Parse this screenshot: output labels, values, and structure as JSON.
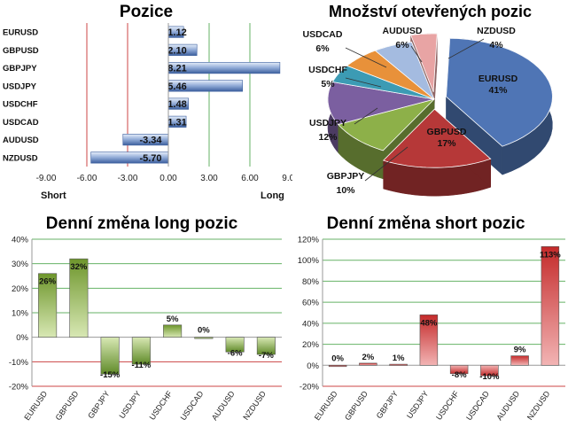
{
  "colors": {
    "positive_green": "#7ea53c",
    "negative_green": "#5f8a28",
    "short_red": "#c42a2a",
    "position_blue": "#4f75b5",
    "grid_green": "#66b266",
    "grid_red": "#cc4444"
  },
  "chart_data": [
    {
      "type": "bar",
      "orientation": "horizontal",
      "title": "Pozice",
      "categories": [
        "EURUSD",
        "GBPUSD",
        "GBPJPY",
        "USDJPY",
        "USDCHF",
        "USDCAD",
        "AUDUSD",
        "NZDUSD"
      ],
      "values": [
        1.12,
        2.1,
        8.21,
        5.46,
        1.48,
        1.31,
        -3.34,
        -5.7
      ],
      "data_labels": [
        "1.12",
        "2.10",
        "8.21",
        "5.46",
        "1.48",
        "1.31",
        "-3.34",
        "-5.70"
      ],
      "xlim": [
        -9,
        9
      ],
      "ticks": [
        -9,
        -6,
        -3,
        0,
        3,
        6,
        9
      ],
      "tick_labels": [
        "-9.00",
        "-6.00",
        "-3.00",
        "0.00",
        "3.00",
        "6.00",
        "9.00"
      ],
      "left_label": "Short",
      "right_label": "Long"
    },
    {
      "type": "pie",
      "title": "Množství otevřených pozic",
      "labels": [
        "EURUSD",
        "GBPUSD",
        "GBPJPY",
        "USDJPY",
        "USDCHF",
        "USDCAD",
        "AUDUSD",
        "NZDUSD"
      ],
      "values": [
        41,
        17,
        10,
        12,
        5,
        6,
        6,
        4
      ],
      "data_labels": [
        "41%",
        "17%",
        "10%",
        "12%",
        "5%",
        "6%",
        "6%",
        "4%"
      ],
      "colors": [
        "#4f75b5",
        "#b63838",
        "#8db049",
        "#7b5fa0",
        "#3c9bb4",
        "#e8913a",
        "#a4bbe0",
        "#e8a4a4"
      ]
    },
    {
      "type": "bar",
      "title": "Denní změna long pozic",
      "categories": [
        "EURUSD",
        "GBPUSD",
        "GBPJPY",
        "USDJPY",
        "USDCHF",
        "USDCAD",
        "AUDUSD",
        "NZDUSD"
      ],
      "values": [
        26,
        32,
        -15,
        -11,
        5,
        0,
        -6,
        -7
      ],
      "data_labels": [
        "26%",
        "32%",
        "-15%",
        "-11%",
        "5%",
        "0%",
        "-6%",
        "-7%"
      ],
      "ylim": [
        -20,
        40
      ],
      "ticks": [
        -20,
        -10,
        0,
        10,
        20,
        30,
        40
      ],
      "tick_labels": [
        "-20%",
        "-10%",
        "0%",
        "10%",
        "20%",
        "30%",
        "40%"
      ]
    },
    {
      "type": "bar",
      "title": "Denní změna short pozic",
      "categories": [
        "EURUSD",
        "GBPUSD",
        "GBPJPY",
        "USDJPY",
        "USDCHF",
        "USDCAD",
        "AUDUSD",
        "NZDUSD"
      ],
      "values": [
        0,
        2,
        1,
        48,
        -8,
        -10,
        9,
        113
      ],
      "data_labels": [
        "0%",
        "2%",
        "1%",
        "48%",
        "-8%",
        "-10%",
        "9%",
        "113%"
      ],
      "ylim": [
        -20,
        120
      ],
      "ticks": [
        -20,
        0,
        20,
        40,
        60,
        80,
        100,
        120
      ],
      "tick_labels": [
        "-20%",
        "0%",
        "20%",
        "40%",
        "60%",
        "80%",
        "100%",
        "120%"
      ]
    }
  ]
}
